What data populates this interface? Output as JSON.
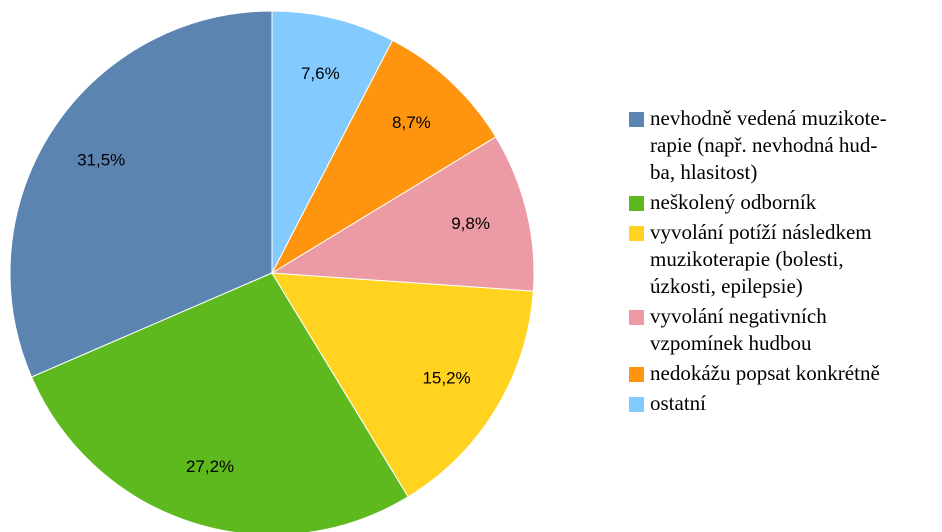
{
  "chart_data": {
    "type": "pie",
    "categories": [
      "nevhodně vedená muzikote-\nrapie (např. nevhodná hud-\nba, hlasitost)",
      "neškolený odborník",
      "vyvolání potíží následkem\nmuzikoterapie (bolesti,\núzkosti, epilepsie)",
      "vyvolání negativních\nvzpomínek hudbou",
      "nedokážu popsat konkrétně",
      "ostatní"
    ],
    "values": [
      31.5,
      27.2,
      15.2,
      9.8,
      8.7,
      7.6
    ],
    "value_labels": [
      "31,5%",
      "27,2%",
      "15,2%",
      "9,8%",
      "8,7%",
      "7,6%"
    ],
    "colors": [
      "#5b84b1",
      "#5eb91e",
      "#ffd320",
      "#ec9ba4",
      "#ff950e",
      "#83caff"
    ]
  }
}
